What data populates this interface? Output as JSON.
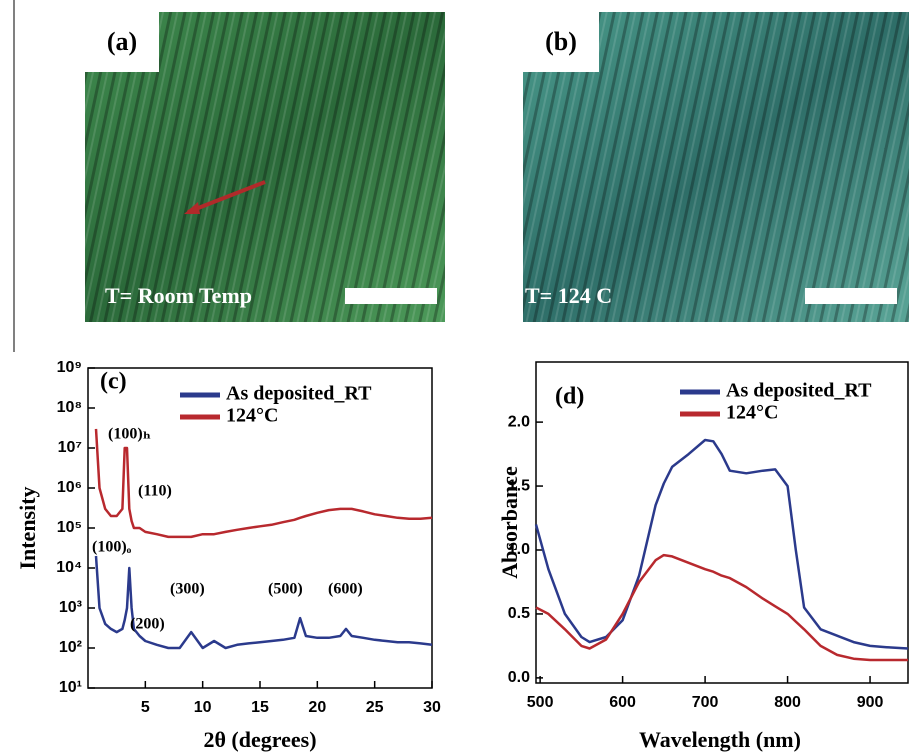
{
  "images": [
    {
      "label": "(a)",
      "caption": "T= Room Temp"
    },
    {
      "label": "(b)",
      "caption": "T= 124 C"
    }
  ],
  "chart_data": [
    {
      "type": "line",
      "panel_label": "(c)",
      "x_label": "2θ (degrees)",
      "y_label": "Intensity",
      "log_y": true,
      "x": [
        0.7,
        1,
        1.5,
        2,
        2.5,
        3,
        3.2,
        3.4,
        3.6,
        3.8,
        4,
        4.5,
        5,
        6,
        7,
        8,
        9,
        10,
        11,
        12,
        13,
        14,
        15,
        16,
        17,
        18,
        18.5,
        19,
        20,
        21,
        22,
        22.5,
        23,
        24,
        25,
        26,
        27,
        28,
        29,
        30
      ],
      "series": [
        {
          "name": "As deposited_RT",
          "color": "#2b3a8c",
          "values": [
            20000,
            1000,
            400,
            300,
            250,
            300,
            500,
            1000,
            10000,
            1000,
            300,
            200,
            150,
            120,
            100,
            100,
            250,
            100,
            150,
            100,
            120,
            130,
            140,
            150,
            160,
            180,
            560,
            200,
            180,
            180,
            200,
            300,
            200,
            180,
            160,
            150,
            140,
            140,
            130,
            120
          ]
        },
        {
          "name": "124°C",
          "color": "#b8292e",
          "values": [
            30000000,
            1000000,
            300000,
            200000,
            200000,
            300000,
            10000000,
            10000000,
            300000,
            150000,
            100000,
            100000,
            80000,
            70000,
            60000,
            60000,
            60000,
            70000,
            70000,
            80000,
            90000,
            100000,
            110000,
            120000,
            140000,
            160000,
            180000,
            200000,
            240000,
            280000,
            300000,
            300000,
            300000,
            260000,
            220000,
            200000,
            180000,
            170000,
            170000,
            180000
          ]
        }
      ],
      "xlim": [
        0,
        30
      ],
      "xticks": [
        5,
        10,
        15,
        20,
        25,
        30
      ],
      "ylim": [
        10,
        1000000000
      ],
      "yticks": [
        {
          "value": 10,
          "label": "10¹"
        },
        {
          "value": 100,
          "label": "10²"
        },
        {
          "value": 1000,
          "label": "10³"
        },
        {
          "value": 10000,
          "label": "10⁴"
        },
        {
          "value": 100000,
          "label": "10⁵"
        },
        {
          "value": 1000000,
          "label": "10⁶"
        },
        {
          "value": 10000000,
          "label": "10⁷"
        },
        {
          "value": 100000000,
          "label": "10⁸"
        },
        {
          "value": 1000000000,
          "label": "10⁹"
        }
      ],
      "annotations": [
        "(100)ₕ",
        "(110)",
        "(100)ₒ",
        "(200)",
        "(300)",
        "(500)",
        "(600)"
      ]
    },
    {
      "type": "line",
      "panel_label": "(d)",
      "x_label": "Wavelength (nm)",
      "y_label": "Absorbance",
      "log_y": false,
      "x": [
        495,
        510,
        530,
        550,
        560,
        580,
        600,
        620,
        640,
        650,
        660,
        680,
        700,
        710,
        720,
        730,
        750,
        770,
        785,
        800,
        810,
        820,
        840,
        860,
        880,
        900,
        920,
        946
      ],
      "series": [
        {
          "name": "As deposited_RT",
          "color": "#2b3a8c",
          "values": [
            1.2,
            0.85,
            0.5,
            0.32,
            0.28,
            0.32,
            0.45,
            0.8,
            1.35,
            1.52,
            1.65,
            1.75,
            1.86,
            1.85,
            1.75,
            1.62,
            1.6,
            1.62,
            1.63,
            1.5,
            1.0,
            0.55,
            0.38,
            0.33,
            0.28,
            0.25,
            0.24,
            0.23
          ]
        },
        {
          "name": "124°C",
          "color": "#b8292e",
          "values": [
            0.55,
            0.5,
            0.38,
            0.25,
            0.23,
            0.3,
            0.5,
            0.75,
            0.92,
            0.96,
            0.95,
            0.9,
            0.85,
            0.83,
            0.8,
            0.78,
            0.71,
            0.62,
            0.56,
            0.5,
            0.44,
            0.38,
            0.25,
            0.18,
            0.15,
            0.14,
            0.14,
            0.14
          ]
        }
      ],
      "xlim": [
        495,
        946
      ],
      "xticks": [
        500,
        600,
        700,
        800,
        900
      ],
      "ylim": [
        -0.04,
        2.47
      ],
      "yticks": [
        {
          "value": 0,
          "label": "0.0"
        },
        0.5,
        {
          "value": 1,
          "label": "1.0"
        },
        1.5,
        {
          "value": 2,
          "label": "2.0"
        }
      ],
      "annotations": []
    }
  ]
}
